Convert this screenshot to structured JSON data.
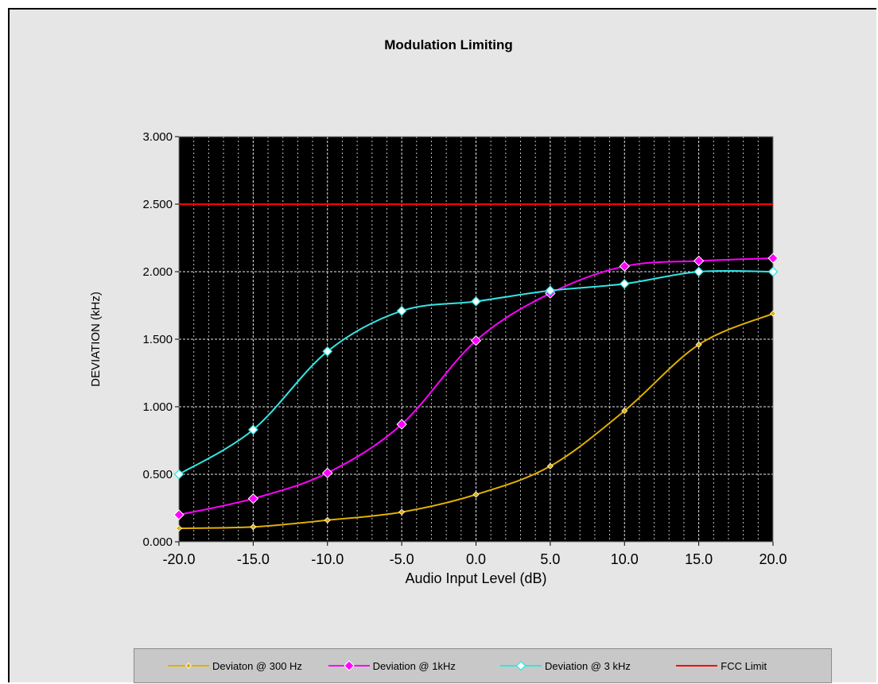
{
  "chart_data": {
    "type": "line",
    "title": "Modulation Limiting",
    "xlabel": "Audio Input Level (dB)",
    "ylabel": "DEVIATION (kHz)",
    "x": [
      -20,
      -15,
      -10,
      -5,
      0,
      5,
      10,
      15,
      20
    ],
    "x_tick_labels": [
      "-20.0",
      "-15.0",
      "-10.0",
      "-5.0",
      "0.0",
      "5.0",
      "10.0",
      "15.0",
      "20.0"
    ],
    "y_tick_labels": [
      "0.000",
      "0.500",
      "1.000",
      "1.500",
      "2.000",
      "2.500",
      "3.000"
    ],
    "xlim": [
      -20,
      20
    ],
    "ylim": [
      0,
      3
    ],
    "grid": true,
    "legend_position": "bottom",
    "plot_background": "#000000",
    "series": [
      {
        "name": "Deviaton @ 300 Hz",
        "color": "#e0b000",
        "marker": "small-diamond",
        "values": [
          0.1,
          0.11,
          0.16,
          0.22,
          0.35,
          0.56,
          0.97,
          1.46,
          1.69
        ]
      },
      {
        "name": "Deviation @ 1kHz",
        "color": "#ff00ff",
        "marker": "filled-diamond",
        "values": [
          0.2,
          0.32,
          0.51,
          0.87,
          1.49,
          1.84,
          2.04,
          2.08,
          2.1
        ]
      },
      {
        "name": "Deviation @ 3 kHz",
        "color": "#33e5e5",
        "marker": "open-diamond",
        "values": [
          0.5,
          0.83,
          1.41,
          1.71,
          1.78,
          1.86,
          1.91,
          2.0,
          2.0
        ]
      },
      {
        "name": "FCC Limit",
        "color": "#ff0000",
        "marker": "none",
        "values": [
          2.5,
          2.5,
          2.5,
          2.5,
          2.5,
          2.5,
          2.5,
          2.5,
          2.5
        ]
      }
    ]
  }
}
